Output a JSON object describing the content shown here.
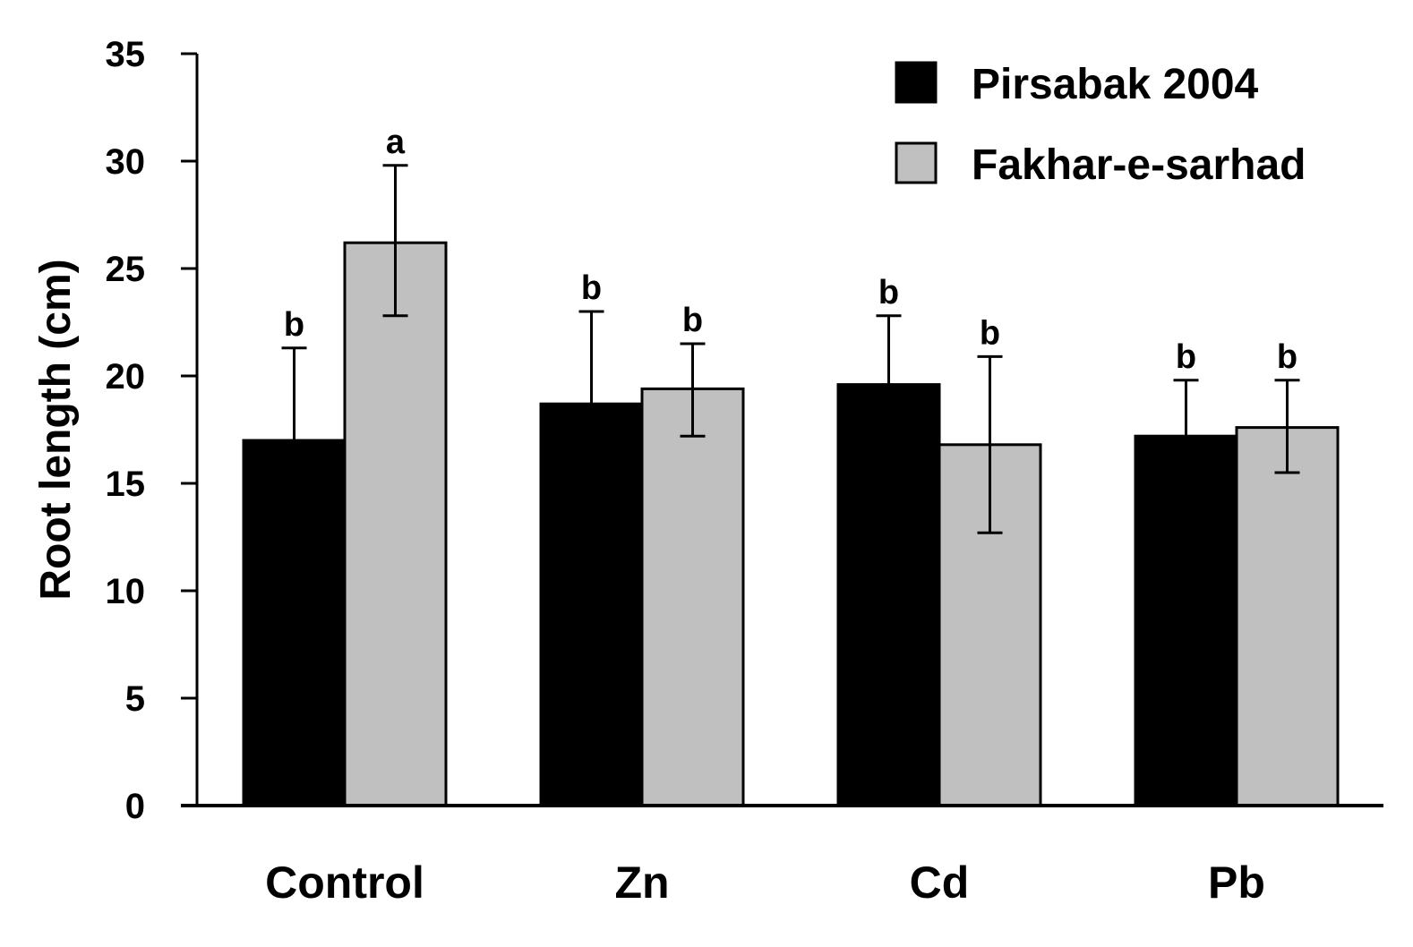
{
  "chart_data": {
    "type": "bar",
    "title": "",
    "xlabel": "",
    "ylabel": "Root length (cm)",
    "ylim": [
      0,
      35
    ],
    "yticks": [
      0,
      5,
      10,
      15,
      20,
      25,
      30,
      35
    ],
    "grid": false,
    "legend_position": "top-right",
    "categories": [
      "Control",
      "Zn",
      "Cd",
      "Pb"
    ],
    "series": [
      {
        "name": "Pirsabak 2004",
        "color": "#000000",
        "values": [
          17.0,
          18.7,
          19.6,
          17.2
        ],
        "error_upper": [
          4.3,
          4.3,
          3.2,
          2.6
        ],
        "error_lower": [
          0,
          0,
          0,
          0
        ],
        "significance": [
          "b",
          "b",
          "b",
          "b"
        ]
      },
      {
        "name": "Fakhar-e-sarhad",
        "color": "#c0c0c0",
        "values": [
          26.2,
          19.4,
          16.8,
          17.6
        ],
        "error_upper": [
          3.6,
          2.1,
          4.1,
          2.2
        ],
        "error_lower": [
          3.4,
          2.2,
          4.1,
          2.1
        ],
        "significance": [
          "a",
          "b",
          "b",
          "b"
        ]
      }
    ]
  }
}
